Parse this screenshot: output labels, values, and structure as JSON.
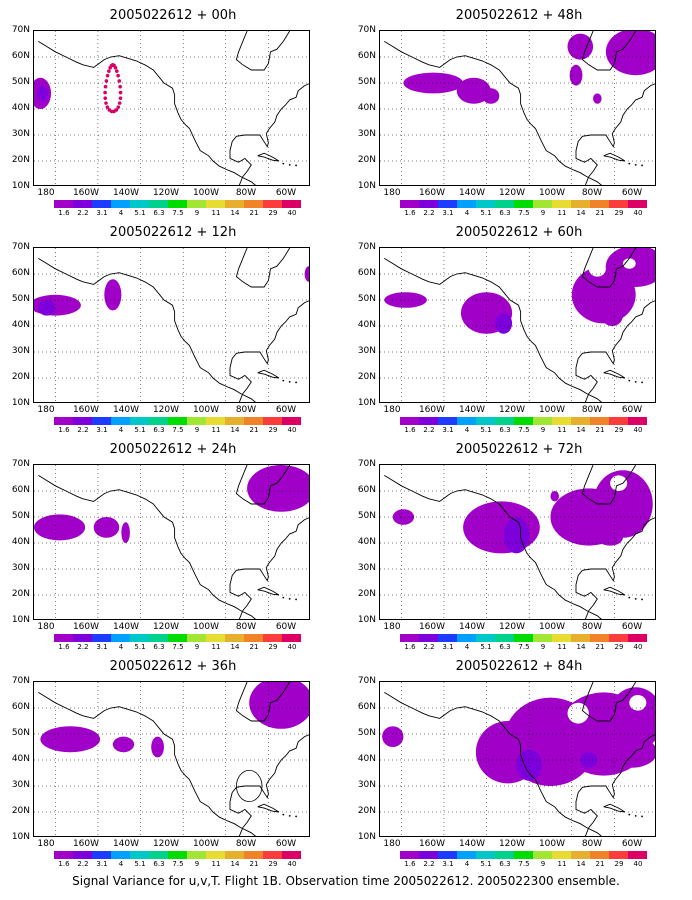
{
  "colorbar": {
    "labels": [
      "1.6",
      "2.2",
      "3.1",
      "4",
      "5.1",
      "6.3",
      "7.5",
      "9",
      "11",
      "14",
      "21",
      "29",
      "40"
    ],
    "colors": [
      "#a000c8",
      "#7d00dc",
      "#1e3cff",
      "#00a0ff",
      "#00c8c8",
      "#00d28c",
      "#00dc00",
      "#a0e632",
      "#e6dc32",
      "#e6af2d",
      "#f08228",
      "#fa3c3c",
      "#dc0064"
    ]
  },
  "lat_labels": [
    "70N",
    "60N",
    "50N",
    "40N",
    "30N",
    "20N",
    "10N"
  ],
  "lon_labels": [
    "180",
    "160W",
    "140W",
    "120W",
    "100W",
    "80W",
    "60W"
  ],
  "panels": [
    {
      "title": "2005022612 + 00h"
    },
    {
      "title": "2005022612 + 48h"
    },
    {
      "title": "2005022612 + 12h"
    },
    {
      "title": "2005022612 + 60h"
    },
    {
      "title": "2005022612 + 24h"
    },
    {
      "title": "2005022612 + 72h"
    },
    {
      "title": "2005022612 + 36h"
    },
    {
      "title": "2005022612 + 84h"
    }
  ],
  "caption": "Signal Variance for u,v,T. Flight 1B. Observation time 2005022612. 2005022300 ensemble."
}
